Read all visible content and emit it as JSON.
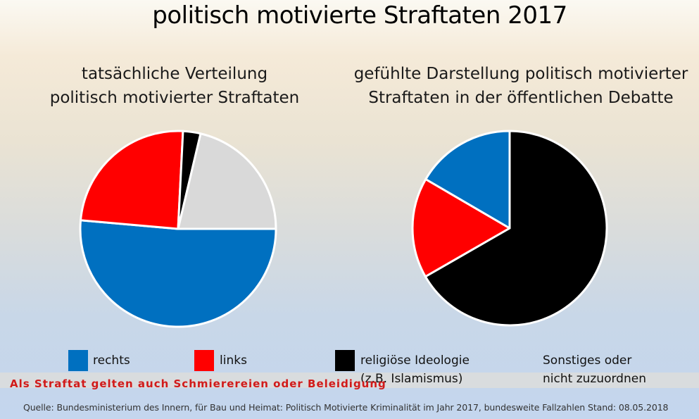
{
  "title": "politisch motivierte Straftaten 2017",
  "colors": {
    "rechts": "#0070c0",
    "links": "#ff0000",
    "religioes": "#000000",
    "sonstiges": "#d9d9d9"
  },
  "legend": {
    "rechts": "rechts",
    "links": "links",
    "religioes_1": "religiöse Ideologie",
    "religioes_2": "(z.B. Islamismus)",
    "sonstiges_1": "Sonstiges oder",
    "sonstiges_2": "nicht zuzuordnen"
  },
  "note": "Als Straftat gelten auch Schmierereien oder Beleidigung",
  "source": "Quelle:  Bundesministerium des Innern, für Bau und Heimat: Politisch Motivierte Kriminalität im Jahr 2017, bundesweite Fallzahlen Stand: 08.05.2018",
  "chart_data": [
    {
      "type": "pie",
      "title_line1": "tatsächliche Verteilung",
      "title_line2": "politisch motivierter Straftaten",
      "slices": [
        {
          "label": "rechts",
          "value": 51.4,
          "color": "#0070c0"
        },
        {
          "label": "links",
          "value": 24.4,
          "color": "#ff0000"
        },
        {
          "label": "religiöse Ideologie (z.B. Islamismus)",
          "value": 2.9,
          "color": "#000000"
        },
        {
          "label": "Sonstiges oder nicht zuzuordnen",
          "value": 21.3,
          "color": "#d9d9d9"
        }
      ]
    },
    {
      "type": "pie",
      "title_line1": "gefühlte Darstellung politisch motivierter",
      "title_line2": "Straftaten in der öffentlichen Debatte",
      "slices": [
        {
          "label": "religiöse Ideologie (z.B. Islamismus)",
          "value": 66.7,
          "color": "#000000"
        },
        {
          "label": "links",
          "value": 16.7,
          "color": "#ff0000"
        },
        {
          "label": "rechts",
          "value": 16.6,
          "color": "#0070c0"
        }
      ]
    }
  ]
}
